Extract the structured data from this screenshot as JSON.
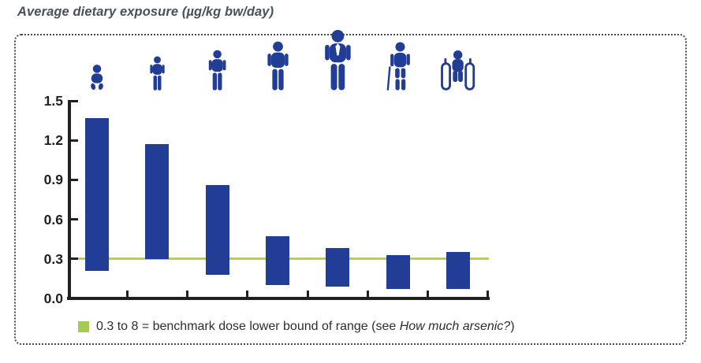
{
  "title": "Average dietary exposure (µg/kg bw/day)",
  "chart_data": {
    "type": "bar",
    "subtype": "floating-range-bars",
    "title": "Average dietary exposure (µg/kg bw/day)",
    "xlabel": "",
    "ylabel": "Average dietary exposure (µg/kg bw/day)",
    "ylim": [
      0,
      1.5
    ],
    "yticks": [
      "0.0",
      "0.3",
      "0.6",
      "0.9",
      "1.2",
      "1.5"
    ],
    "grid": false,
    "legend_position": "bottom",
    "benchmark_value": 0.3,
    "categories": [
      {
        "label": "infants",
        "icon": "infant-icon",
        "low": 0.21,
        "high": 1.37
      },
      {
        "label": "toddlers",
        "icon": "toddler-icon",
        "low": 0.3,
        "high": 1.17
      },
      {
        "label": "children",
        "icon": "child-icon",
        "low": 0.18,
        "high": 0.86
      },
      {
        "label": "adolescents",
        "icon": "adolescent-icon",
        "low": 0.1,
        "high": 0.47
      },
      {
        "label": "adults",
        "icon": "adult-icon",
        "low": 0.09,
        "high": 0.38
      },
      {
        "label": "elderly",
        "icon": "elderly-icon",
        "low": 0.07,
        "high": 0.33
      },
      {
        "label": "very-elderly",
        "icon": "wheelchair-icon",
        "low": 0.07,
        "high": 0.35
      }
    ],
    "colors": {
      "bar": "#213d96",
      "benchmark_line": "#b7d43a",
      "legend_swatch": "#a4cc52",
      "axis": "#231f20"
    }
  },
  "legend": {
    "text_before": "0.3 to 8 = benchmark dose lower bound of range (see ",
    "text_italic": "How much arsenic?",
    "text_after": ")"
  }
}
